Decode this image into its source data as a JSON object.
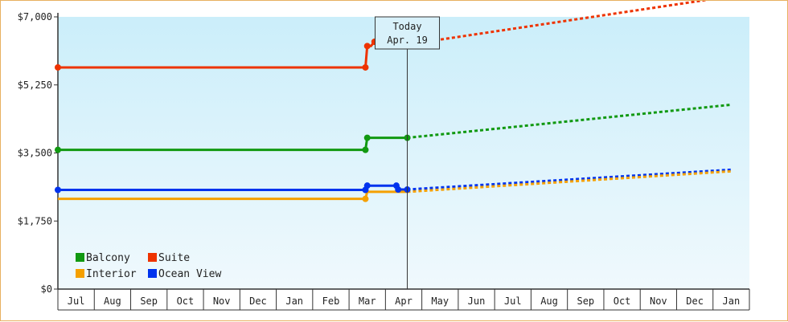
{
  "chart_data": {
    "type": "line",
    "y_ticks": [
      {
        "value": 0,
        "label": "$0"
      },
      {
        "value": 1750,
        "label": "$1,750"
      },
      {
        "value": 3500,
        "label": "$3,500"
      },
      {
        "value": 5250,
        "label": "$5,250"
      },
      {
        "value": 7000,
        "label": "$7,000"
      }
    ],
    "ylim": [
      0,
      7000
    ],
    "x_months": [
      "Jul",
      "Aug",
      "Sep",
      "Oct",
      "Nov",
      "Dec",
      "Jan",
      "Feb",
      "Mar",
      "Apr",
      "May",
      "Jun",
      "Jul",
      "Aug",
      "Sep",
      "Oct",
      "Nov",
      "Dec",
      "Jan"
    ],
    "today": {
      "line1": "Today",
      "line2": "Apr. 19",
      "month_pos": 9.6
    },
    "grid": false,
    "legend_position": "bottom-left",
    "series": [
      {
        "name": "Suite",
        "color": "#ee3300",
        "actual": [
          [
            0,
            5700
          ],
          [
            8.45,
            5700
          ],
          [
            8.5,
            6250
          ],
          [
            8.6,
            6250
          ],
          [
            8.7,
            6360
          ],
          [
            8.8,
            6360
          ],
          [
            9.3,
            6360
          ],
          [
            9.35,
            6280
          ],
          [
            9.6,
            6290
          ]
        ],
        "markers": [
          [
            0,
            5700
          ],
          [
            8.45,
            5700
          ],
          [
            8.5,
            6250
          ],
          [
            8.7,
            6360
          ],
          [
            9.3,
            6360
          ],
          [
            9.35,
            6280
          ],
          [
            9.6,
            6290
          ]
        ],
        "projected": [
          [
            9.6,
            6290
          ],
          [
            18.5,
            7530
          ]
        ]
      },
      {
        "name": "Balcony",
        "color": "#119911",
        "actual": [
          [
            0,
            3580
          ],
          [
            8.45,
            3580
          ],
          [
            8.5,
            3890
          ],
          [
            9.6,
            3890
          ]
        ],
        "markers": [
          [
            0,
            3580
          ],
          [
            8.45,
            3580
          ],
          [
            8.5,
            3890
          ],
          [
            9.6,
            3890
          ]
        ],
        "projected": [
          [
            9.6,
            3890
          ],
          [
            18.5,
            4740
          ]
        ]
      },
      {
        "name": "Ocean View",
        "color": "#0033ee",
        "actual": [
          [
            0,
            2550
          ],
          [
            8.45,
            2550
          ],
          [
            8.5,
            2660
          ],
          [
            9.3,
            2660
          ],
          [
            9.35,
            2560
          ],
          [
            9.6,
            2560
          ]
        ],
        "markers": [
          [
            0,
            2550
          ],
          [
            8.45,
            2550
          ],
          [
            8.5,
            2660
          ],
          [
            9.3,
            2660
          ],
          [
            9.35,
            2560
          ],
          [
            9.6,
            2560
          ]
        ],
        "projected": [
          [
            9.6,
            2560
          ],
          [
            18.5,
            3070
          ]
        ]
      },
      {
        "name": "Interior",
        "color": "#f5a000",
        "actual": [
          [
            0,
            2320
          ],
          [
            8.45,
            2320
          ],
          [
            8.5,
            2500
          ],
          [
            9.6,
            2500
          ]
        ],
        "markers": [
          [
            8.45,
            2320
          ]
        ],
        "projected": [
          [
            9.6,
            2500
          ],
          [
            18.5,
            3030
          ]
        ]
      }
    ],
    "legend": [
      {
        "name": "Balcony",
        "color": "#119911"
      },
      {
        "name": "Suite",
        "color": "#ee3300"
      },
      {
        "name": "Interior",
        "color": "#f5a000"
      },
      {
        "name": "Ocean View",
        "color": "#0033ee"
      }
    ]
  }
}
